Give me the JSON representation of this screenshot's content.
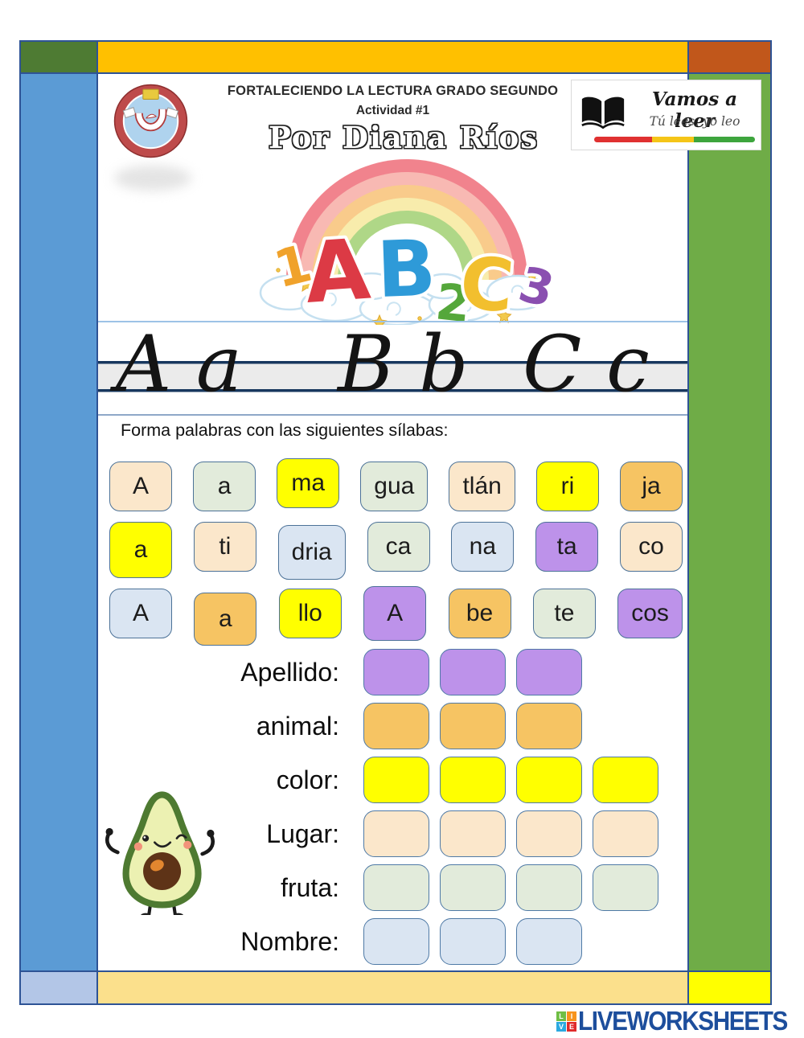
{
  "header": {
    "title_line1": "FORTALECIENDO LA LECTURA GRADO SEGUNDO",
    "title_line2": "Actividad #1",
    "author": "Por Diana Ríos"
  },
  "reading_logo": {
    "title": "Vamos a leer",
    "subtitle": "Tú lees, yo leo"
  },
  "abc_illustration": {
    "characters": [
      "1",
      "A",
      "B",
      "2",
      "C",
      "3"
    ]
  },
  "handwriting": {
    "groups": [
      "A a",
      "B b",
      "C c"
    ]
  },
  "instruction": "Forma palabras con las siguientes sílabas:",
  "palette": {
    "cream": "#FBE7CB",
    "pale_green": "#E2EBDB",
    "yellow": "#FFFF00",
    "orange": "#F6C463",
    "pale_blue": "#DAE5F2",
    "purple": "#BD92EA",
    "frame_top": "#FFC000",
    "frame_left": "#5B9BD5",
    "frame_right": "#6FAC47",
    "frame_bottom": "#FBE08C",
    "corner_top_left": "#4E7B33",
    "corner_top_right": "#C1571B",
    "corner_bottom_left": "#B3C6E7",
    "corner_bottom_right": "#FFFF00"
  },
  "syllable_tiles": {
    "rows": [
      [
        {
          "label": "A",
          "color": "cream"
        },
        {
          "label": "a",
          "color": "pale_green"
        },
        {
          "label": "ma",
          "color": "yellow"
        },
        {
          "label": "gua",
          "color": "pale_green"
        },
        {
          "label": "tlán",
          "color": "cream"
        },
        {
          "label": "ri",
          "color": "yellow"
        },
        {
          "label": "ja",
          "color": "orange"
        }
      ],
      [
        {
          "label": "a",
          "color": "yellow"
        },
        {
          "label": "ti",
          "color": "cream"
        },
        {
          "label": "dria",
          "color": "pale_blue"
        },
        {
          "label": "ca",
          "color": "pale_green"
        },
        {
          "label": "na",
          "color": "pale_blue"
        },
        {
          "label": "ta",
          "color": "purple"
        },
        {
          "label": "co",
          "color": "cream"
        }
      ],
      [
        {
          "label": "A",
          "color": "pale_blue"
        },
        {
          "label": "a",
          "color": "orange"
        },
        {
          "label": "llo",
          "color": "yellow"
        },
        {
          "label": "A",
          "color": "purple"
        },
        {
          "label": "be",
          "color": "orange"
        },
        {
          "label": "te",
          "color": "pale_green"
        },
        {
          "label": "cos",
          "color": "purple"
        }
      ]
    ]
  },
  "answers": {
    "rows": [
      {
        "label": "Apellido:",
        "boxes": 3,
        "color": "purple"
      },
      {
        "label": "animal:",
        "boxes": 3,
        "color": "orange"
      },
      {
        "label": "color:",
        "boxes": 4,
        "color": "yellow"
      },
      {
        "label": "Lugar:",
        "boxes": 4,
        "color": "cream"
      },
      {
        "label": "fruta:",
        "boxes": 4,
        "color": "pale_green"
      },
      {
        "label": "Nombre:",
        "boxes": 3,
        "color": "pale_blue"
      }
    ]
  },
  "footer": {
    "brand": "LIVEWORKSHEETS",
    "brand_color": "#1D4E9C",
    "logo_squares": [
      {
        "letter": "L",
        "color": "#6FBE44"
      },
      {
        "letter": "I",
        "color": "#F7941D"
      },
      {
        "letter": "V",
        "color": "#2BA9E0"
      },
      {
        "letter": "E",
        "color": "#E02B2B"
      }
    ]
  }
}
